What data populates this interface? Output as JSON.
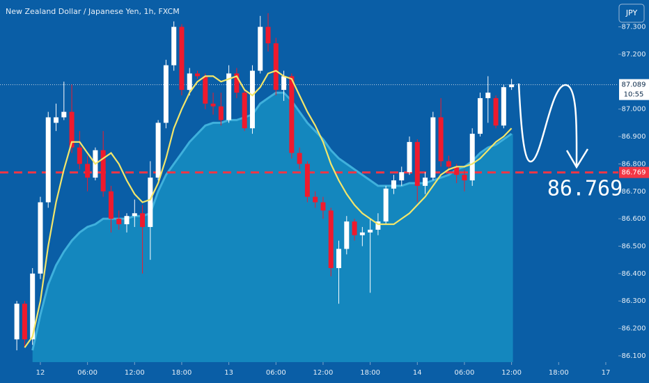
{
  "chart_data": {
    "type": "candlestick",
    "title": "New Zealand Dollar / Japanese Yen, 1h, FXCM",
    "currency": "JPY",
    "up_color": "#ffffff",
    "down_color": "#ef1a2d",
    "background": "#0a5ea6",
    "xlim": [
      -2.14,
      76.6
    ],
    "xticks": [
      {
        "value": 3,
        "label": "12"
      },
      {
        "value": 9,
        "label": "06:00"
      },
      {
        "value": 15,
        "label": "12:00"
      },
      {
        "value": 21,
        "label": "18:00"
      },
      {
        "value": 27,
        "label": "13"
      },
      {
        "value": 33,
        "label": "06:00"
      },
      {
        "value": 39,
        "label": "12:00"
      },
      {
        "value": 45,
        "label": "18:00"
      },
      {
        "value": 51,
        "label": "14"
      },
      {
        "value": 57,
        "label": "06:00"
      },
      {
        "value": 63,
        "label": "12:00"
      },
      {
        "value": 69,
        "label": "18:00"
      },
      {
        "value": 75,
        "label": "17"
      }
    ],
    "ylim": [
      86.077,
      87.398
    ],
    "yticks": [
      {
        "value": 86.1,
        "label": "86.100"
      },
      {
        "value": 86.2,
        "label": "86.200"
      },
      {
        "value": 86.3,
        "label": "86.300"
      },
      {
        "value": 86.4,
        "label": "86.400"
      },
      {
        "value": 86.5,
        "label": "86.500"
      },
      {
        "value": 86.6,
        "label": "86.600"
      },
      {
        "value": 86.7,
        "label": "86.700"
      },
      {
        "value": 86.8,
        "label": "86.800"
      },
      {
        "value": 86.9,
        "label": "86.900"
      },
      {
        "value": 87.0,
        "label": "87.000"
      },
      {
        "value": 87.2,
        "label": "87.200"
      },
      {
        "value": 87.3,
        "label": "87.300"
      }
    ],
    "open": [
      86.16,
      86.29,
      86.16,
      86.4,
      86.66,
      86.95,
      86.97,
      86.99,
      86.86,
      86.8,
      86.75,
      86.85,
      86.7,
      86.6,
      86.58,
      86.61,
      86.62,
      86.57,
      86.75,
      86.95,
      87.16,
      87.3,
      87.07,
      87.13,
      87.12,
      87.02,
      87.01,
      86.96,
      87.13,
      87.06,
      86.93,
      87.14,
      87.3,
      87.24,
      87.07,
      87.12,
      86.84,
      86.8,
      86.68,
      86.66,
      86.63,
      86.42,
      86.49,
      86.59,
      86.54,
      86.55,
      86.56,
      86.59,
      86.71,
      86.74,
      86.77,
      86.88,
      86.72,
      86.75,
      86.97,
      86.81,
      86.79,
      86.76,
      86.74,
      86.91,
      87.04,
      87.04,
      86.94,
      87.08
    ],
    "high": [
      86.3,
      86.3,
      86.42,
      86.68,
      86.99,
      87.02,
      87.1,
      87.09,
      86.92,
      86.83,
      86.86,
      86.92,
      86.72,
      86.63,
      86.62,
      86.67,
      86.65,
      86.81,
      86.96,
      87.18,
      87.32,
      87.31,
      87.15,
      87.14,
      87.13,
      87.06,
      87.06,
      87.16,
      87.15,
      87.07,
      87.16,
      87.34,
      87.35,
      87.26,
      87.14,
      87.13,
      86.86,
      86.81,
      86.7,
      86.68,
      86.64,
      86.52,
      86.61,
      86.6,
      86.57,
      86.6,
      86.62,
      86.72,
      86.76,
      86.79,
      86.9,
      86.89,
      86.77,
      86.99,
      87.04,
      86.83,
      86.8,
      86.78,
      86.93,
      87.06,
      87.12,
      87.05,
      87.09,
      87.11
    ],
    "low": [
      86.12,
      86.13,
      86.14,
      86.38,
      86.64,
      86.92,
      86.96,
      86.84,
      86.78,
      86.7,
      86.74,
      86.68,
      86.55,
      86.56,
      86.55,
      86.57,
      86.4,
      86.45,
      86.74,
      86.93,
      87.14,
      87.05,
      87.05,
      87.11,
      87.0,
      86.98,
      86.94,
      86.95,
      87.04,
      86.92,
      86.91,
      87.13,
      87.21,
      87.05,
      87.03,
      86.82,
      86.78,
      86.66,
      86.64,
      86.6,
      86.39,
      86.29,
      86.47,
      86.52,
      86.5,
      86.33,
      86.54,
      86.58,
      86.69,
      86.72,
      86.76,
      86.66,
      86.69,
      86.74,
      86.79,
      86.77,
      86.73,
      86.7,
      86.72,
      86.9,
      86.95,
      86.93,
      86.93,
      87.07
    ],
    "close": [
      86.29,
      86.16,
      86.4,
      86.66,
      86.97,
      86.97,
      86.99,
      86.86,
      86.8,
      86.75,
      86.85,
      86.7,
      86.6,
      86.58,
      86.61,
      86.62,
      86.57,
      86.75,
      86.95,
      87.16,
      87.3,
      87.07,
      87.13,
      87.12,
      87.02,
      87.01,
      86.96,
      87.13,
      87.06,
      86.93,
      87.14,
      87.3,
      87.24,
      87.07,
      87.12,
      86.84,
      86.8,
      86.68,
      86.66,
      86.63,
      86.42,
      86.49,
      86.59,
      86.54,
      86.55,
      86.56,
      86.59,
      86.71,
      86.74,
      86.77,
      86.88,
      86.72,
      86.75,
      86.97,
      86.81,
      86.79,
      86.76,
      86.74,
      86.91,
      87.04,
      87.06,
      86.94,
      87.08,
      87.09
    ],
    "area": {
      "color": "#1589bf",
      "edge_color": "#3fb0dc",
      "values": [
        null,
        null,
        86.12,
        86.25,
        86.36,
        86.43,
        86.48,
        86.52,
        86.55,
        86.57,
        86.58,
        86.6,
        86.6,
        86.6,
        86.6,
        86.61,
        86.61,
        86.62,
        86.7,
        86.76,
        86.8,
        86.84,
        86.88,
        86.91,
        86.94,
        86.95,
        86.95,
        86.96,
        86.96,
        86.97,
        86.98,
        87.02,
        87.04,
        87.06,
        87.06,
        87.03,
        86.99,
        86.95,
        86.92,
        86.89,
        86.85,
        86.82,
        86.8,
        86.78,
        86.76,
        86.74,
        86.72,
        86.72,
        86.72,
        86.72,
        86.73,
        86.73,
        86.73,
        86.74,
        86.75,
        86.76,
        86.78,
        86.79,
        86.81,
        86.84,
        86.86,
        86.87,
        86.89,
        86.91
      ]
    },
    "moving_average": {
      "color": "#f3e66a",
      "values": [
        null,
        86.13,
        86.17,
        86.3,
        86.5,
        86.66,
        86.78,
        86.88,
        86.88,
        86.84,
        86.8,
        86.82,
        86.84,
        86.8,
        86.74,
        86.69,
        86.66,
        86.67,
        86.73,
        86.82,
        86.93,
        87.0,
        87.06,
        87.1,
        87.12,
        87.12,
        87.1,
        87.11,
        87.12,
        87.07,
        87.05,
        87.08,
        87.13,
        87.14,
        87.12,
        87.11,
        87.05,
        86.99,
        86.94,
        86.88,
        86.8,
        86.74,
        86.69,
        86.65,
        86.62,
        86.6,
        86.58,
        86.58,
        86.58,
        86.6,
        86.62,
        86.65,
        86.68,
        86.72,
        86.76,
        86.78,
        86.79,
        86.79,
        86.8,
        86.82,
        86.85,
        86.88,
        86.9,
        86.93
      ]
    },
    "price_lines": [
      {
        "value": 87.089,
        "label": "87.089",
        "countdown": "10:55",
        "color": "#c9d6e3",
        "style": "dotted"
      },
      {
        "value": 86.769,
        "label": "86.769",
        "color": "#f23645",
        "style": "dashed"
      }
    ],
    "annotation": "86.769"
  }
}
